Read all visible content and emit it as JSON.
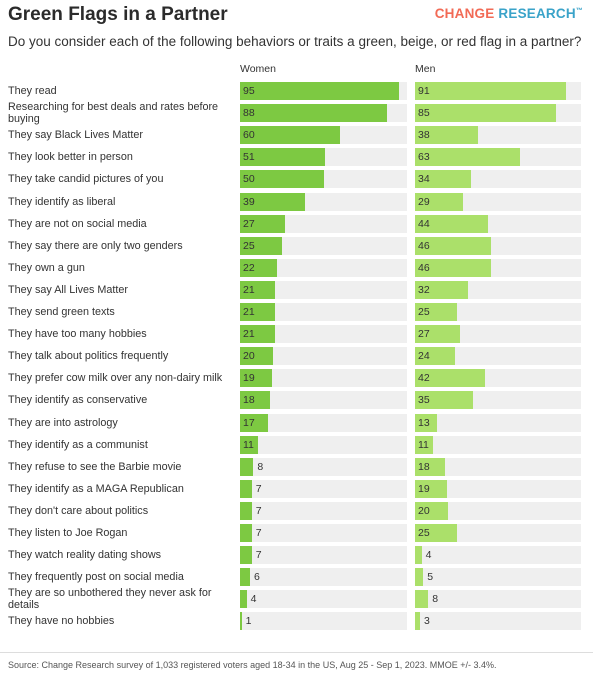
{
  "header": {
    "title": "Green Flags in a Partner",
    "brand_part1": "CHANGE",
    "brand_part2": "RESEARCH",
    "brand_tm": "™",
    "subtitle": "Do you consider each of the following behaviors or traits a green, beige, or red flag in a partner?"
  },
  "footer": {
    "source": "Source: Change Research survey of 1,033 registered voters aged 18-34 in the US, Aug 25 - Sep 1, 2023. MMOE +/- 3.4%."
  },
  "colors": {
    "women": "#7dc942",
    "men": "#abe06a",
    "track": "#efefef",
    "brand_orange": "#f26a55",
    "brand_blue": "#3aa3c9"
  },
  "chart_data": {
    "type": "bar",
    "orientation": "horizontal",
    "xlim": [
      0,
      100
    ],
    "grid": false,
    "categories": [
      "They read",
      "Researching for best deals and rates before buying",
      "They say Black Lives Matter",
      "They look better in person",
      "They take candid pictures of you",
      "They identify as liberal",
      "They are not on social media",
      "They say there are only two genders",
      "They own a gun",
      "They say All Lives Matter",
      "They send green texts",
      "They have too many hobbies",
      "They talk about politics frequently",
      "They prefer cow milk over any non-dairy milk",
      "They identify as conservative",
      "They are into astrology",
      "They identify as a communist",
      "They refuse to see the Barbie movie",
      "They identify as a MAGA Republican",
      "They don't care about politics",
      "They listen to Joe Rogan",
      "They watch reality dating shows",
      "They frequently post on social media",
      "They are so unbothered they never ask for details",
      "They have no hobbies"
    ],
    "series": [
      {
        "name": "Women",
        "values": [
          95,
          88,
          60,
          51,
          50,
          39,
          27,
          25,
          22,
          21,
          21,
          21,
          20,
          19,
          18,
          17,
          11,
          8,
          7,
          7,
          7,
          7,
          6,
          4,
          1
        ]
      },
      {
        "name": "Men",
        "values": [
          91,
          85,
          38,
          63,
          34,
          29,
          44,
          46,
          46,
          32,
          25,
          27,
          24,
          42,
          35,
          13,
          11,
          18,
          19,
          20,
          25,
          4,
          5,
          8,
          3
        ]
      }
    ]
  }
}
